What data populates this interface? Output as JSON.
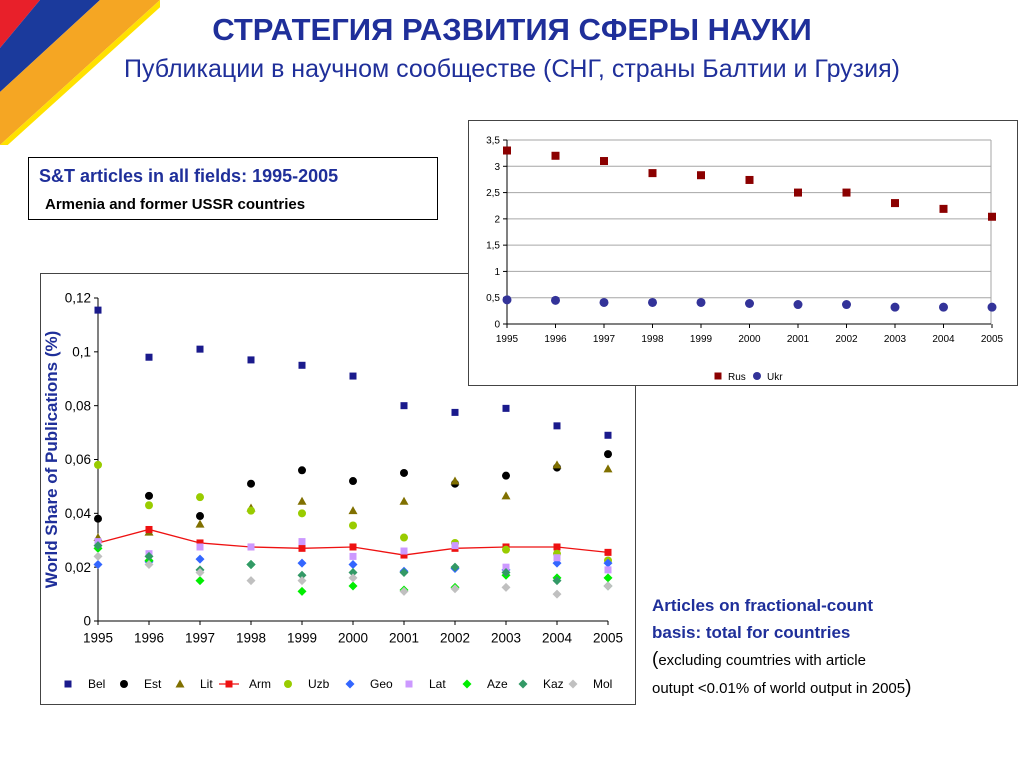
{
  "header": {
    "title": "СТРАТЕГИЯ РАЗВИТИЯ СФЕРЫ НАУКИ",
    "subtitle": "Публикации в научном сообществе (СНГ, страны Балтии и Грузия)"
  },
  "caption": {
    "title": "S&T articles in all fields: 1995-2005",
    "subtitle": "Armenia and former USSR countries"
  },
  "note": {
    "line1": "Articles on fractional-count",
    "line2": "basis: total for countries",
    "open_paren": "(",
    "line3": "excluding coumtries with article",
    "line4": "outupt <0.01% of world output in 2005",
    "close_paren": ")"
  },
  "colors": {
    "title": "#1f2f9a",
    "flag_red": "#e8202a",
    "flag_blue": "#1b3a9c",
    "flag_orange": "#f5a623",
    "flag_yellow": "#ffe100"
  },
  "chart_data": [
    {
      "type": "scatter",
      "ylabel": "World Share of Publications (%)",
      "xlabel": "",
      "x": [
        "1995",
        "1996",
        "1997",
        "1998",
        "1999",
        "2000",
        "2001",
        "2002",
        "2003",
        "2004",
        "2005"
      ],
      "ylim": [
        0,
        0.12
      ],
      "yticks": [
        "0",
        "0,02",
        "0,04",
        "0,06",
        "0,08",
        "0,1",
        "0,12"
      ],
      "grid": false,
      "legend": "bottom",
      "series": [
        {
          "name": "Bel",
          "marker": "square",
          "color": "#1a1a8c",
          "values": [
            0.1155,
            0.098,
            0.101,
            0.097,
            0.095,
            0.091,
            0.08,
            0.0775,
            0.079,
            0.0725,
            0.069
          ]
        },
        {
          "name": "Est",
          "marker": "circle",
          "color": "#000000",
          "values": [
            0.038,
            0.0465,
            0.039,
            0.051,
            0.056,
            0.052,
            0.055,
            0.051,
            0.054,
            0.057,
            0.062
          ]
        },
        {
          "name": "Lit",
          "marker": "triangle",
          "color": "#807000",
          "values": [
            0.031,
            0.033,
            0.036,
            0.042,
            0.0445,
            0.041,
            0.0445,
            0.052,
            0.0465,
            0.058,
            0.0565
          ]
        },
        {
          "name": "Arm",
          "marker": "square",
          "line": true,
          "color": "#ee1111",
          "values": [
            0.029,
            0.034,
            0.029,
            0.0275,
            0.027,
            0.0275,
            0.0245,
            0.027,
            0.0275,
            0.0275,
            0.0255
          ]
        },
        {
          "name": "Uzb",
          "marker": "circle",
          "color": "#99cc00",
          "values": [
            0.058,
            0.043,
            0.046,
            0.041,
            0.04,
            0.0355,
            0.031,
            0.029,
            0.0265,
            0.025,
            0.0225
          ]
        },
        {
          "name": "Geo",
          "marker": "diamond",
          "color": "#3366ff",
          "values": [
            0.021,
            0.022,
            0.023,
            0.021,
            0.0215,
            0.021,
            0.0185,
            0.0195,
            0.019,
            0.0215,
            0.0215
          ]
        },
        {
          "name": "Lat",
          "marker": "square",
          "color": "#cc99ff",
          "values": [
            0.0295,
            0.025,
            0.0275,
            0.0275,
            0.0295,
            0.024,
            0.026,
            0.028,
            0.02,
            0.0235,
            0.019
          ]
        },
        {
          "name": "Aze",
          "marker": "diamond",
          "color": "#00ee00",
          "values": [
            0.027,
            0.0225,
            0.015,
            0.021,
            0.011,
            0.013,
            0.0115,
            0.0125,
            0.017,
            0.016,
            0.016
          ]
        },
        {
          "name": "Kaz",
          "marker": "diamond",
          "color": "#339966",
          "values": [
            0.028,
            0.024,
            0.019,
            0.021,
            0.017,
            0.018,
            0.018,
            0.02,
            0.018,
            0.015,
            0.013
          ]
        },
        {
          "name": "Mol",
          "marker": "diamond",
          "color": "#c0c0c0",
          "values": [
            0.024,
            0.021,
            0.018,
            0.015,
            0.015,
            0.016,
            0.011,
            0.012,
            0.0125,
            0.01,
            0.013
          ]
        }
      ]
    },
    {
      "type": "scatter",
      "xlabel": "",
      "ylabel": "",
      "x": [
        "1995",
        "1996",
        "1997",
        "1998",
        "1999",
        "2000",
        "2001",
        "2002",
        "2003",
        "2004",
        "2005"
      ],
      "ylim": [
        0,
        3.5
      ],
      "yticks": [
        "0",
        "0,5",
        "1",
        "1,5",
        "2",
        "2,5",
        "3",
        "3,5"
      ],
      "grid": true,
      "legend": "bottom",
      "series": [
        {
          "name": "Rus",
          "marker": "square",
          "color": "#8b0000",
          "values": [
            3.3,
            3.2,
            3.1,
            2.87,
            2.83,
            2.74,
            2.5,
            2.5,
            2.3,
            2.19,
            2.04
          ]
        },
        {
          "name": "Ukr",
          "marker": "circle",
          "color": "#333399",
          "values": [
            0.46,
            0.45,
            0.41,
            0.41,
            0.41,
            0.39,
            0.37,
            0.37,
            0.32,
            0.32,
            0.32
          ]
        }
      ]
    }
  ]
}
